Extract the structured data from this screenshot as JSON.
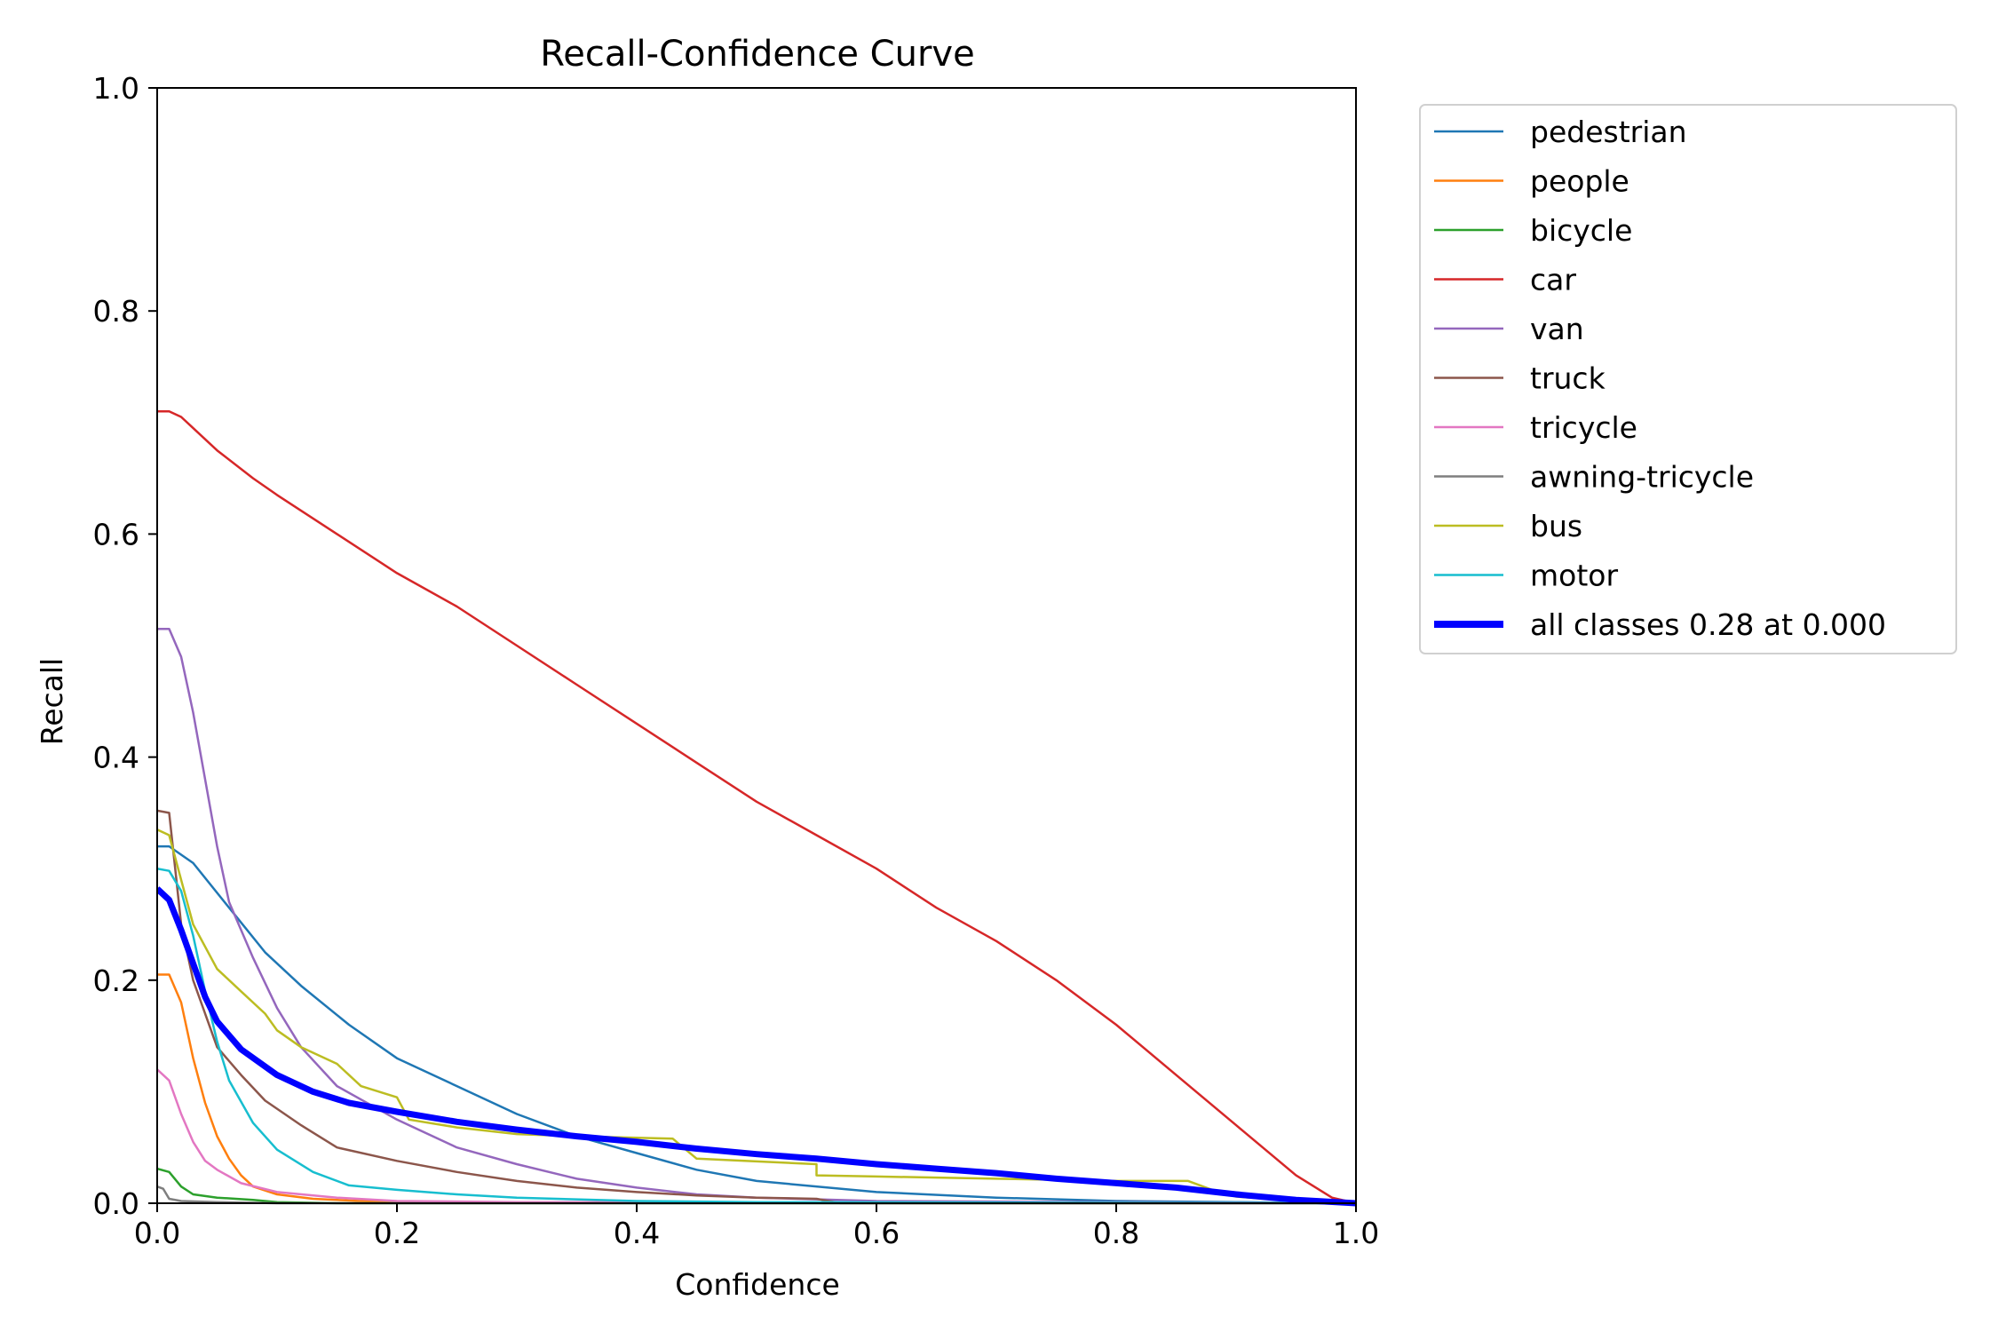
{
  "chart_data": {
    "type": "line",
    "title": "Recall-Confidence Curve",
    "xlabel": "Confidence",
    "ylabel": "Recall",
    "xlim": [
      0,
      1
    ],
    "ylim": [
      0,
      1
    ],
    "xticks": [
      "0.0",
      "0.2",
      "0.4",
      "0.6",
      "0.8",
      "1.0"
    ],
    "yticks": [
      "0.0",
      "0.2",
      "0.4",
      "0.6",
      "0.8",
      "1.0"
    ],
    "grid": false,
    "legend_position": "outside-right",
    "series": [
      {
        "name": "pedestrian",
        "color": "#1f77b4",
        "width": 2.5,
        "points": [
          [
            0,
            0.32
          ],
          [
            0.01,
            0.32
          ],
          [
            0.03,
            0.305
          ],
          [
            0.06,
            0.265
          ],
          [
            0.09,
            0.225
          ],
          [
            0.12,
            0.195
          ],
          [
            0.16,
            0.16
          ],
          [
            0.2,
            0.13
          ],
          [
            0.25,
            0.105
          ],
          [
            0.3,
            0.08
          ],
          [
            0.35,
            0.06
          ],
          [
            0.4,
            0.045
          ],
          [
            0.45,
            0.03
          ],
          [
            0.5,
            0.02
          ],
          [
            0.6,
            0.01
          ],
          [
            0.7,
            0.005
          ],
          [
            0.8,
            0.002
          ],
          [
            0.9,
            0.001
          ],
          [
            1.0,
            0
          ]
        ]
      },
      {
        "name": "people",
        "color": "#ff7f0e",
        "width": 2.5,
        "points": [
          [
            0,
            0.205
          ],
          [
            0.01,
            0.205
          ],
          [
            0.02,
            0.18
          ],
          [
            0.03,
            0.13
          ],
          [
            0.04,
            0.09
          ],
          [
            0.05,
            0.06
          ],
          [
            0.06,
            0.04
          ],
          [
            0.07,
            0.025
          ],
          [
            0.08,
            0.015
          ],
          [
            0.1,
            0.008
          ],
          [
            0.13,
            0.004
          ],
          [
            0.17,
            0.002
          ],
          [
            0.2,
            0.001
          ],
          [
            1.0,
            0
          ]
        ]
      },
      {
        "name": "bicycle",
        "color": "#2ca02c",
        "width": 2.5,
        "points": [
          [
            0,
            0.031
          ],
          [
            0.01,
            0.028
          ],
          [
            0.02,
            0.015
          ],
          [
            0.03,
            0.008
          ],
          [
            0.05,
            0.005
          ],
          [
            0.08,
            0.003
          ],
          [
            0.1,
            0.001
          ],
          [
            0.15,
            0
          ],
          [
            1.0,
            0
          ]
        ]
      },
      {
        "name": "car",
        "color": "#d62728",
        "width": 2.5,
        "points": [
          [
            0,
            0.71
          ],
          [
            0.01,
            0.71
          ],
          [
            0.02,
            0.705
          ],
          [
            0.03,
            0.695
          ],
          [
            0.05,
            0.675
          ],
          [
            0.08,
            0.65
          ],
          [
            0.1,
            0.635
          ],
          [
            0.15,
            0.6
          ],
          [
            0.2,
            0.565
          ],
          [
            0.25,
            0.535
          ],
          [
            0.3,
            0.5
          ],
          [
            0.35,
            0.465
          ],
          [
            0.4,
            0.43
          ],
          [
            0.45,
            0.395
          ],
          [
            0.5,
            0.36
          ],
          [
            0.55,
            0.33
          ],
          [
            0.6,
            0.3
          ],
          [
            0.65,
            0.265
          ],
          [
            0.7,
            0.235
          ],
          [
            0.75,
            0.2
          ],
          [
            0.8,
            0.16
          ],
          [
            0.85,
            0.115
          ],
          [
            0.9,
            0.07
          ],
          [
            0.95,
            0.025
          ],
          [
            0.98,
            0.005
          ],
          [
            1.0,
            0
          ]
        ]
      },
      {
        "name": "van",
        "color": "#9467bd",
        "width": 2.5,
        "points": [
          [
            0,
            0.515
          ],
          [
            0.01,
            0.515
          ],
          [
            0.02,
            0.49
          ],
          [
            0.03,
            0.44
          ],
          [
            0.04,
            0.38
          ],
          [
            0.05,
            0.32
          ],
          [
            0.06,
            0.27
          ],
          [
            0.08,
            0.22
          ],
          [
            0.1,
            0.175
          ],
          [
            0.12,
            0.14
          ],
          [
            0.15,
            0.105
          ],
          [
            0.2,
            0.075
          ],
          [
            0.25,
            0.05
          ],
          [
            0.3,
            0.035
          ],
          [
            0.35,
            0.022
          ],
          [
            0.4,
            0.014
          ],
          [
            0.45,
            0.008
          ],
          [
            0.5,
            0.005
          ],
          [
            0.6,
            0.002
          ],
          [
            1.0,
            0
          ]
        ]
      },
      {
        "name": "truck",
        "color": "#8c564b",
        "width": 2.5,
        "points": [
          [
            0,
            0.352
          ],
          [
            0.01,
            0.35
          ],
          [
            0.015,
            0.3
          ],
          [
            0.02,
            0.25
          ],
          [
            0.03,
            0.2
          ],
          [
            0.04,
            0.17
          ],
          [
            0.05,
            0.14
          ],
          [
            0.07,
            0.115
          ],
          [
            0.09,
            0.092
          ],
          [
            0.12,
            0.07
          ],
          [
            0.15,
            0.05
          ],
          [
            0.2,
            0.038
          ],
          [
            0.25,
            0.028
          ],
          [
            0.3,
            0.02
          ],
          [
            0.35,
            0.014
          ],
          [
            0.4,
            0.01
          ],
          [
            0.45,
            0.007
          ],
          [
            0.5,
            0.005
          ],
          [
            0.55,
            0.004
          ],
          [
            0.57,
            0
          ],
          [
            1.0,
            0
          ]
        ]
      },
      {
        "name": "tricycle",
        "color": "#e377c2",
        "width": 2.5,
        "points": [
          [
            0,
            0.12
          ],
          [
            0.01,
            0.11
          ],
          [
            0.02,
            0.08
          ],
          [
            0.03,
            0.055
          ],
          [
            0.04,
            0.038
          ],
          [
            0.05,
            0.03
          ],
          [
            0.07,
            0.018
          ],
          [
            0.1,
            0.01
          ],
          [
            0.15,
            0.005
          ],
          [
            0.2,
            0.002
          ],
          [
            0.3,
            0.001
          ],
          [
            1.0,
            0
          ]
        ]
      },
      {
        "name": "awning-tricycle",
        "color": "#7f7f7f",
        "width": 2.5,
        "points": [
          [
            0,
            0.015
          ],
          [
            0.005,
            0.013
          ],
          [
            0.01,
            0.004
          ],
          [
            0.02,
            0.002
          ],
          [
            0.05,
            0.001
          ],
          [
            0.1,
            0
          ],
          [
            1.0,
            0
          ]
        ]
      },
      {
        "name": "bus",
        "color": "#bcbd22",
        "width": 2.5,
        "points": [
          [
            0,
            0.335
          ],
          [
            0.01,
            0.33
          ],
          [
            0.02,
            0.29
          ],
          [
            0.03,
            0.25
          ],
          [
            0.05,
            0.21
          ],
          [
            0.07,
            0.19
          ],
          [
            0.09,
            0.17
          ],
          [
            0.1,
            0.155
          ],
          [
            0.12,
            0.14
          ],
          [
            0.15,
            0.125
          ],
          [
            0.17,
            0.105
          ],
          [
            0.2,
            0.095
          ],
          [
            0.21,
            0.075
          ],
          [
            0.25,
            0.068
          ],
          [
            0.3,
            0.062
          ],
          [
            0.35,
            0.06
          ],
          [
            0.43,
            0.058
          ],
          [
            0.45,
            0.04
          ],
          [
            0.55,
            0.035
          ],
          [
            0.55,
            0.025
          ],
          [
            0.6,
            0.024
          ],
          [
            0.7,
            0.022
          ],
          [
            0.8,
            0.02
          ],
          [
            0.86,
            0.02
          ],
          [
            0.88,
            0.012
          ],
          [
            0.9,
            0.006
          ],
          [
            0.95,
            0.002
          ],
          [
            1.0,
            0
          ]
        ]
      },
      {
        "name": "motor",
        "color": "#17becf",
        "width": 2.5,
        "points": [
          [
            0,
            0.3
          ],
          [
            0.01,
            0.298
          ],
          [
            0.02,
            0.28
          ],
          [
            0.03,
            0.24
          ],
          [
            0.04,
            0.19
          ],
          [
            0.05,
            0.145
          ],
          [
            0.06,
            0.11
          ],
          [
            0.08,
            0.072
          ],
          [
            0.1,
            0.048
          ],
          [
            0.13,
            0.028
          ],
          [
            0.16,
            0.016
          ],
          [
            0.2,
            0.012
          ],
          [
            0.25,
            0.008
          ],
          [
            0.3,
            0.005
          ],
          [
            0.4,
            0.002
          ],
          [
            0.5,
            0.001
          ],
          [
            1.0,
            0
          ]
        ]
      },
      {
        "name": "all classes 0.28 at 0.000",
        "color": "#0000ff",
        "width": 7,
        "points": [
          [
            0,
            0.282
          ],
          [
            0.01,
            0.272
          ],
          [
            0.02,
            0.245
          ],
          [
            0.03,
            0.215
          ],
          [
            0.04,
            0.185
          ],
          [
            0.05,
            0.163
          ],
          [
            0.07,
            0.138
          ],
          [
            0.1,
            0.115
          ],
          [
            0.13,
            0.1
          ],
          [
            0.16,
            0.09
          ],
          [
            0.2,
            0.082
          ],
          [
            0.25,
            0.073
          ],
          [
            0.3,
            0.066
          ],
          [
            0.35,
            0.06
          ],
          [
            0.4,
            0.055
          ],
          [
            0.45,
            0.049
          ],
          [
            0.5,
            0.044
          ],
          [
            0.55,
            0.04
          ],
          [
            0.6,
            0.035
          ],
          [
            0.65,
            0.031
          ],
          [
            0.7,
            0.027
          ],
          [
            0.75,
            0.022
          ],
          [
            0.8,
            0.018
          ],
          [
            0.85,
            0.014
          ],
          [
            0.9,
            0.008
          ],
          [
            0.95,
            0.003
          ],
          [
            1.0,
            0
          ]
        ]
      }
    ]
  }
}
